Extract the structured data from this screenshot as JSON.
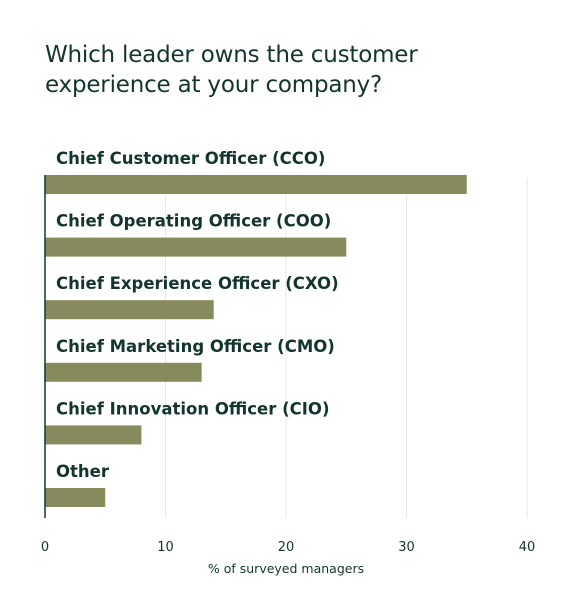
{
  "chart_data": {
    "type": "bar",
    "orientation": "horizontal",
    "title": "Which leader owns the customer experience at your company?",
    "categories": [
      "Chief Customer Officer (CCO)",
      "Chief Operating Officer (COO)",
      "Chief Experience Officer (CXO)",
      "Chief Marketing Officer (CMO)",
      "Chief Innovation Officer (CIO)",
      "Other"
    ],
    "values": [
      35,
      25,
      14,
      13,
      8,
      5
    ],
    "xlabel": "% of surveyed managers",
    "ylabel": "",
    "xlim": [
      0,
      40
    ],
    "xticks": [
      "0",
      "10",
      "20",
      "30",
      "40"
    ],
    "grid": "vertical",
    "legend": "none"
  },
  "colors": {
    "bar": "#878a5c",
    "text": "#13352e",
    "grid": "#e8e8e8",
    "axis": "#13352e"
  }
}
